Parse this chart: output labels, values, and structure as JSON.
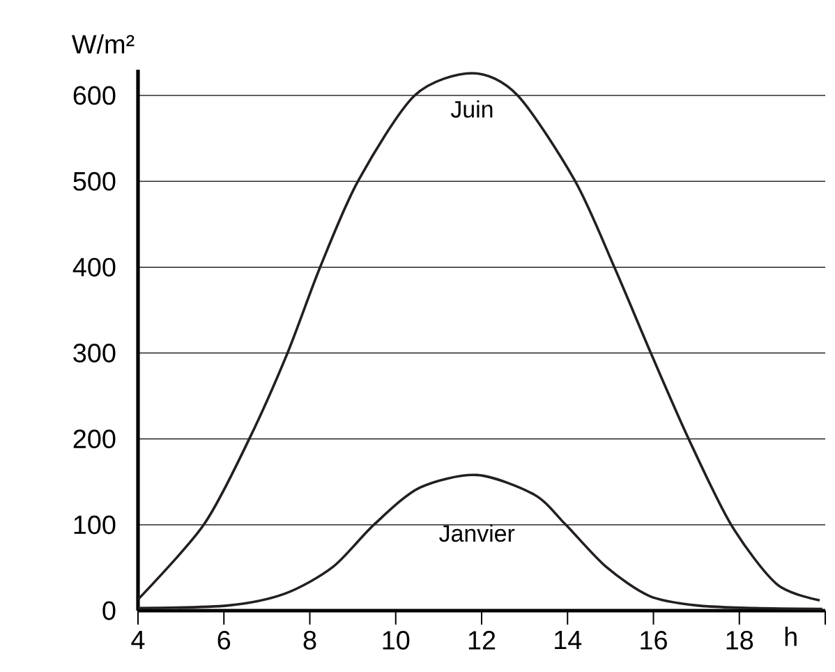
{
  "chart_data": {
    "type": "line",
    "xlabel": "h",
    "ylabel": "W/m²",
    "xlim": [
      4,
      20
    ],
    "ylim": [
      0,
      630
    ],
    "xticks": [
      4,
      6,
      8,
      10,
      12,
      14,
      16,
      18,
      {
        "value": 20,
        "label": null
      }
    ],
    "yticks": [
      0,
      100,
      200,
      300,
      400,
      500,
      600
    ],
    "grid": "y",
    "legend": false,
    "marker": "none",
    "line_style": "solid",
    "series": [
      {
        "name": "Juin",
        "color": "#231f20",
        "x": [
          4,
          5.53,
          6.59,
          7.48,
          8.24,
          9.12,
          10.44,
          11.78,
          12.84,
          14.18,
          15.09,
          15.94,
          16.82,
          17.81,
          18.87,
          19.87
        ],
        "values": [
          13,
          100,
          200,
          300,
          400,
          500,
          600,
          626,
          600,
          500,
          400,
          300,
          200,
          100,
          31,
          12
        ]
      },
      {
        "name": "Janvier",
        "color": "#231f20",
        "x": [
          4,
          6.09,
          7.43,
          8.54,
          9.49,
          10.55,
          11.89,
          13.23,
          13.96,
          14.9,
          15.91,
          17.02,
          18.36,
          19.93
        ],
        "values": [
          3,
          6,
          20,
          51,
          100,
          143,
          158,
          135,
          100,
          51,
          17,
          6,
          3,
          2
        ]
      }
    ]
  }
}
